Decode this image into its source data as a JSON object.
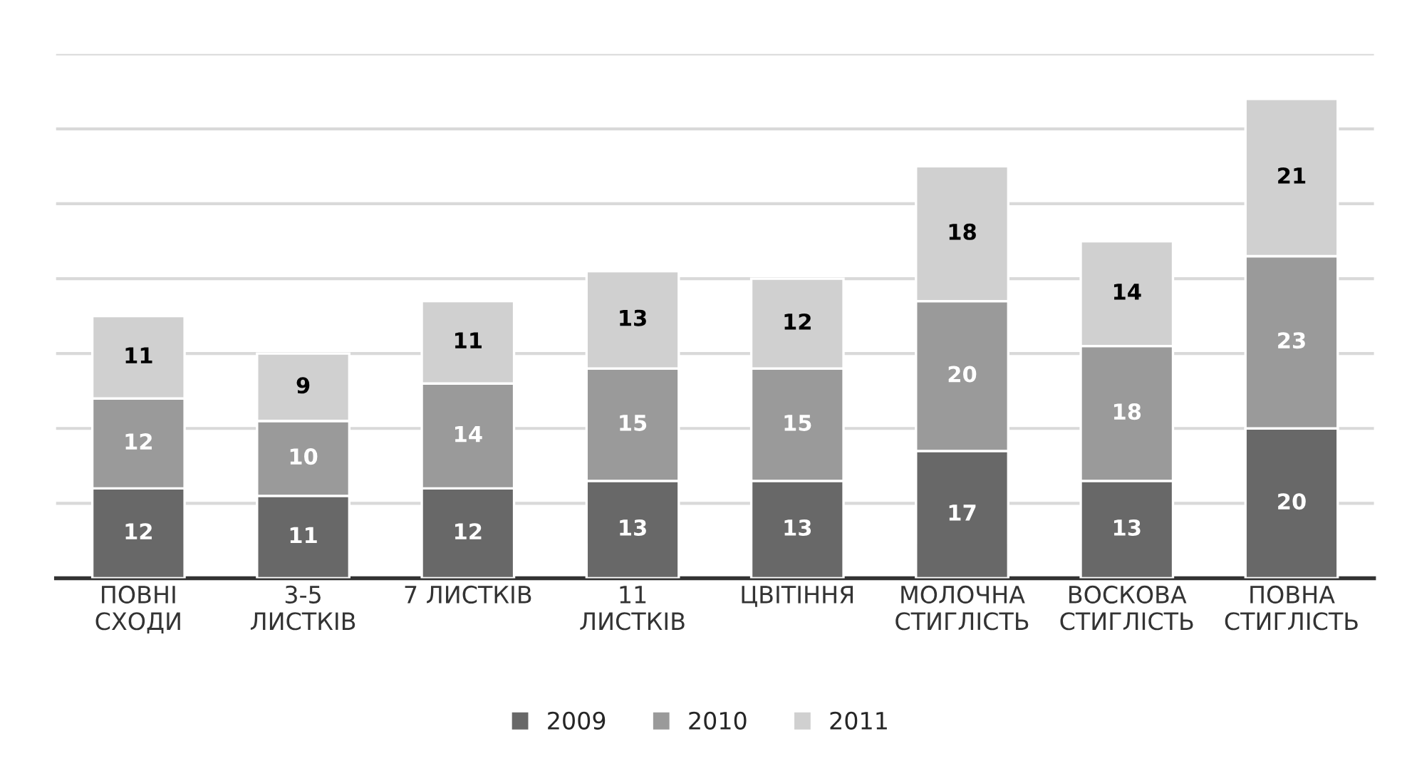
{
  "chart_data": {
    "type": "bar",
    "stacked": true,
    "categories": [
      "ПОВНІ\nСХОДИ",
      "3-5\nЛИСТКІВ",
      "7 ЛИСТКІВ",
      "11\nЛИСТКІВ",
      "ЦВІТІННЯ",
      "МОЛОЧНА\nСТИГЛІСТЬ",
      "ВОСКОВА\nСТИГЛІСТЬ",
      "ПОВНА\nСТИГЛІСТЬ"
    ],
    "series": [
      {
        "name": "2009",
        "color": "#686868",
        "values": [
          12,
          11,
          12,
          13,
          13,
          17,
          13,
          20
        ]
      },
      {
        "name": "2010",
        "color": "#9a9a9a",
        "values": [
          12,
          10,
          14,
          15,
          15,
          20,
          18,
          23
        ]
      },
      {
        "name": "2011",
        "color": "#d0d0d0",
        "values": [
          11,
          9,
          11,
          13,
          12,
          18,
          14,
          21
        ]
      }
    ],
    "ylim": [
      0,
      70
    ],
    "yticks": [
      {
        "value": 0,
        "label": null
      },
      {
        "value": 10,
        "label": null
      },
      {
        "value": 20,
        "label": null
      },
      {
        "value": 30,
        "label": null
      },
      {
        "value": 40,
        "label": null
      },
      {
        "value": 50,
        "label": null
      },
      {
        "value": 60,
        "label": null
      },
      {
        "value": 70,
        "label": null
      }
    ],
    "tick_labels": "x",
    "grid": "y",
    "data_labels": true,
    "legend": "bottom"
  }
}
